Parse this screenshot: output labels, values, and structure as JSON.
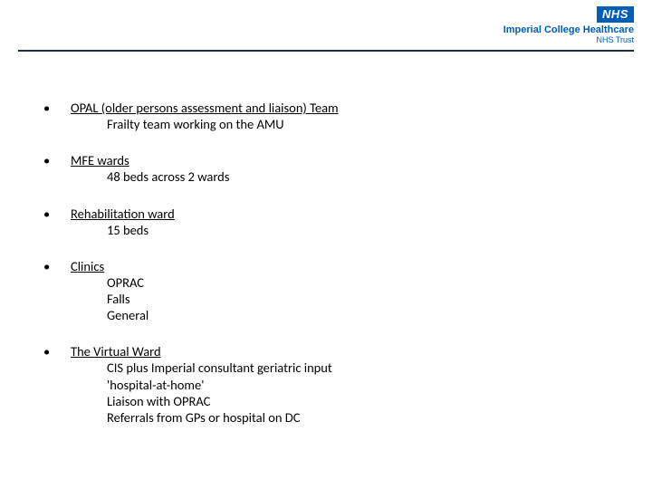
{
  "header": {
    "nhs_label": "NHS",
    "trust_name": "Imperial College Healthcare",
    "trust_sub": "NHS Trust"
  },
  "items": [
    {
      "title": "OPAL (older persons assessment and liaison) Team",
      "subs": [
        "Frailty team working on the AMU"
      ]
    },
    {
      "title": "MFE wards",
      "subs": [
        "48 beds across 2 wards"
      ]
    },
    {
      "title": "Rehabilitation ward",
      "subs": [
        "15 beds"
      ]
    },
    {
      "title": "Clinics",
      "subs": [
        "OPRAC",
        "Falls",
        "General"
      ]
    },
    {
      "title": "The Virtual Ward",
      "subs": [
        "CIS plus Imperial consultant geriatric input",
        "'hospital-at-home'",
        "Liaison with OPRAC",
        "Referrals from GPs or hospital on DC"
      ]
    }
  ],
  "colors": {
    "nhs_blue": "#005EB8",
    "rule": "#1f2a44",
    "text": "#000000",
    "bg": "#ffffff"
  }
}
